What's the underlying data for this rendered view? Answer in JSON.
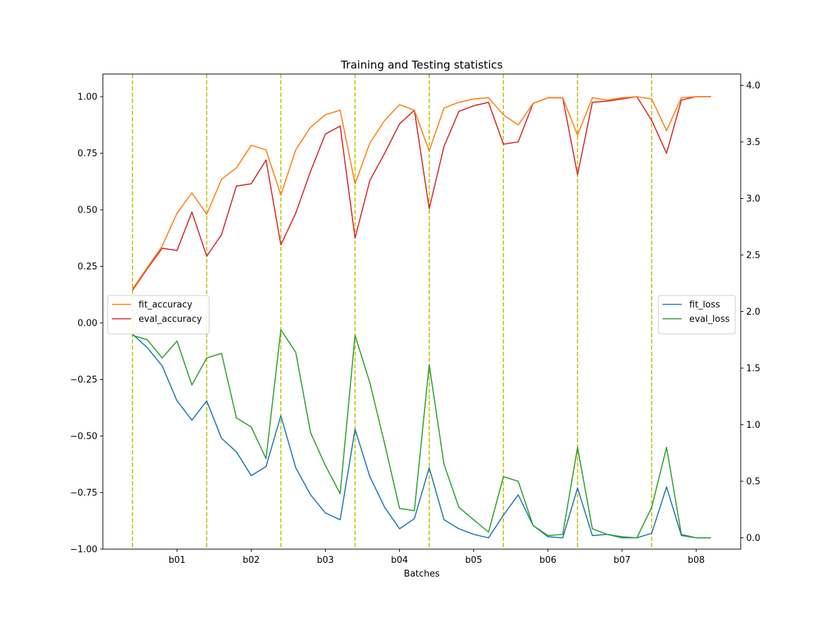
{
  "chart_data": {
    "type": "line",
    "title": "Training and Testing statistics",
    "xlabel": "Batches",
    "ylabel": "",
    "ylabel_right": "",
    "x_ticks": [
      "b01",
      "b02",
      "b03",
      "b04",
      "b05",
      "b06",
      "b07",
      "b08"
    ],
    "xlim": [
      -0.5,
      8.1
    ],
    "ylim": [
      -1.0,
      1.1
    ],
    "ylim_right": [
      -0.1,
      4.1
    ],
    "y_ticks": [
      -1.0,
      -0.75,
      -0.5,
      -0.25,
      0.0,
      0.25,
      0.5,
      0.75,
      1.0
    ],
    "y_tick_labels": [
      "−1.00",
      "−0.75",
      "−0.50",
      "−0.25",
      "0.00",
      "0.25",
      "0.50",
      "0.75",
      "1.00"
    ],
    "y_ticks_right": [
      0.0,
      0.5,
      1.0,
      1.5,
      2.0,
      2.5,
      3.0,
      3.5,
      4.0
    ],
    "y_tick_labels_right": [
      "0.0",
      "0.5",
      "1.0",
      "1.5",
      "2.0",
      "2.5",
      "3.0",
      "3.5",
      "4.0"
    ],
    "grid": false,
    "vlines": [
      -0.1,
      0.9,
      1.9,
      2.9,
      3.9,
      4.9,
      5.9,
      6.9
    ],
    "vline_color": "#bfbf00",
    "x": [
      -0.1,
      0.1,
      0.3,
      0.5,
      0.7,
      0.9,
      1.1,
      1.3,
      1.5,
      1.7,
      1.9,
      2.1,
      2.3,
      2.5,
      2.7,
      2.9,
      3.1,
      3.3,
      3.5,
      3.7,
      3.9,
      4.1,
      4.3,
      4.5,
      4.7,
      4.9,
      5.1,
      5.3,
      5.5,
      5.7,
      5.9,
      6.1,
      6.3,
      6.5,
      6.7,
      6.9,
      7.1,
      7.3,
      7.5,
      7.7
    ],
    "series": [
      {
        "name": "fit_accuracy",
        "axis": "left",
        "color": "#ff7f0e",
        "values": [
          0.15,
          0.245,
          0.34,
          0.485,
          0.575,
          0.48,
          0.635,
          0.685,
          0.785,
          0.765,
          0.565,
          0.765,
          0.865,
          0.92,
          0.94,
          0.615,
          0.795,
          0.895,
          0.965,
          0.94,
          0.76,
          0.95,
          0.975,
          0.99,
          0.995,
          0.92,
          0.875,
          0.97,
          0.995,
          0.995,
          0.83,
          0.995,
          0.985,
          0.995,
          1.0,
          0.99,
          0.85,
          0.995,
          1.0,
          1.0
        ]
      },
      {
        "name": "eval_accuracy",
        "axis": "left",
        "color": "#d62728",
        "values": [
          0.145,
          0.24,
          0.33,
          0.32,
          0.49,
          0.295,
          0.39,
          0.605,
          0.615,
          0.72,
          0.345,
          0.485,
          0.67,
          0.835,
          0.87,
          0.375,
          0.63,
          0.75,
          0.88,
          0.94,
          0.505,
          0.78,
          0.935,
          0.96,
          0.975,
          0.79,
          0.8,
          0.97,
          0.995,
          0.995,
          0.655,
          0.975,
          0.98,
          0.99,
          1.0,
          0.895,
          0.75,
          0.985,
          1.0,
          1.0
        ]
      },
      {
        "name": "fit_loss",
        "axis": "right",
        "color": "#1f77b4",
        "values": [
          1.8,
          1.68,
          1.52,
          1.21,
          1.04,
          1.21,
          0.88,
          0.76,
          0.55,
          0.63,
          1.08,
          0.62,
          0.38,
          0.22,
          0.16,
          0.96,
          0.54,
          0.27,
          0.08,
          0.17,
          0.62,
          0.16,
          0.08,
          0.03,
          0.0,
          0.2,
          0.38,
          0.11,
          0.01,
          0.0,
          0.44,
          0.02,
          0.03,
          0.0,
          0.0,
          0.04,
          0.45,
          0.02,
          0.0,
          0.0
        ]
      },
      {
        "name": "eval_loss",
        "axis": "right",
        "color": "#2ca02c",
        "values": [
          1.79,
          1.75,
          1.59,
          1.74,
          1.35,
          1.59,
          1.63,
          1.06,
          0.98,
          0.7,
          1.84,
          1.64,
          0.93,
          0.64,
          0.39,
          1.79,
          1.37,
          0.83,
          0.26,
          0.24,
          1.53,
          0.65,
          0.27,
          0.16,
          0.05,
          0.54,
          0.5,
          0.11,
          0.02,
          0.03,
          0.8,
          0.08,
          0.03,
          0.01,
          0.0,
          0.27,
          0.8,
          0.03,
          0.0,
          0.0
        ]
      }
    ],
    "legends": [
      {
        "placement": "center-left",
        "entries": [
          "fit_accuracy",
          "eval_accuracy"
        ]
      },
      {
        "placement": "center-right",
        "entries": [
          "fit_loss",
          "eval_loss"
        ]
      }
    ]
  }
}
